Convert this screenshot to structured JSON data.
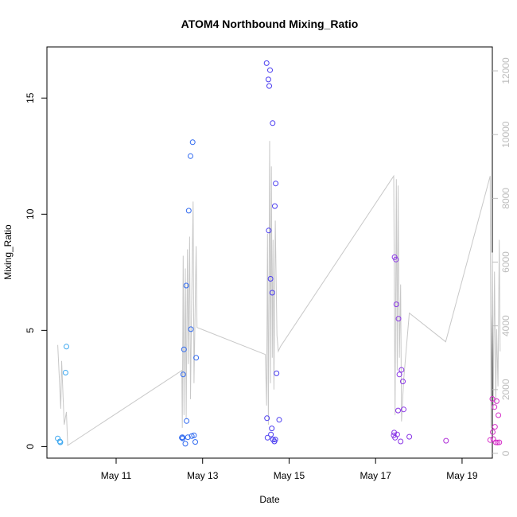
{
  "chart_data": {
    "type": "scatter",
    "title": "ATOM4 Northbound Mixing_Ratio",
    "xlabel": "Date",
    "ylabel": "Mixing_Ratio",
    "x_unit": "days since May 10 00:00",
    "xlim": [
      -0.6,
      9.7
    ],
    "ylim": [
      -0.5,
      17.2
    ],
    "x_ticks": [
      {
        "value": 1,
        "label": "May 11"
      },
      {
        "value": 3,
        "label": "May 13"
      },
      {
        "value": 5,
        "label": "May 15"
      },
      {
        "value": 7,
        "label": "May 17"
      },
      {
        "value": 9,
        "label": "May 19"
      }
    ],
    "y_ticks": [
      {
        "value": 0,
        "label": "0"
      },
      {
        "value": 5,
        "label": "5"
      },
      {
        "value": 10,
        "label": "10"
      },
      {
        "value": 15,
        "label": "15"
      }
    ],
    "y2_lim": [
      -150,
      12750
    ],
    "y2_ticks": [
      {
        "value": 0,
        "label": "0"
      },
      {
        "value": 2000,
        "label": "2000"
      },
      {
        "value": 4000,
        "label": "4000"
      },
      {
        "value": 6000,
        "label": "6000"
      },
      {
        "value": 8000,
        "label": "8000"
      },
      {
        "value": 10000,
        "label": "10000"
      },
      {
        "value": 12000,
        "label": "12000"
      }
    ],
    "series": [
      {
        "kind": "points",
        "values": [
          [
            -0.35,
            0.35,
            "#3ba7f0"
          ],
          [
            -0.3,
            0.22,
            "#3ba7f0"
          ],
          [
            -0.29,
            0.18,
            "#3ba7f0"
          ],
          [
            -0.17,
            3.18,
            "#3ba7f0"
          ],
          [
            -0.15,
            4.3,
            "#3ba7f0"
          ],
          [
            2.52,
            0.38,
            "#2f69f0"
          ],
          [
            2.53,
            0.4,
            "#2f69f0"
          ],
          [
            2.54,
            0.35,
            "#2f69f0"
          ],
          [
            2.55,
            3.1,
            "#2f69f0"
          ],
          [
            2.57,
            4.18,
            "#2f69f0"
          ],
          [
            2.6,
            0.12,
            "#2f69f0"
          ],
          [
            2.62,
            6.93,
            "#2f69f0"
          ],
          [
            2.63,
            1.1,
            "#2f69f0"
          ],
          [
            2.66,
            0.4,
            "#2f69f0"
          ],
          [
            2.68,
            10.15,
            "#2f69f0"
          ],
          [
            2.72,
            12.5,
            "#2f69f0"
          ],
          [
            2.73,
            5.05,
            "#2f69f0"
          ],
          [
            2.75,
            0.45,
            "#2f69f0"
          ],
          [
            2.77,
            13.1,
            "#2f69f0"
          ],
          [
            2.8,
            0.48,
            "#2f69f0"
          ],
          [
            2.83,
            0.2,
            "#2f69f0"
          ],
          [
            2.85,
            3.82,
            "#2f69f0"
          ],
          [
            4.48,
            16.5,
            "#4a3cf0"
          ],
          [
            4.49,
            1.22,
            "#4a3cf0"
          ],
          [
            4.5,
            0.38,
            "#4a3cf0"
          ],
          [
            4.52,
            15.8,
            "#4a3cf0"
          ],
          [
            4.53,
            9.3,
            "#4a3cf0"
          ],
          [
            4.54,
            15.52,
            "#4a3cf0"
          ],
          [
            4.56,
            16.2,
            "#4a3cf0"
          ],
          [
            4.57,
            7.22,
            "#4a3cf0"
          ],
          [
            4.58,
            0.52,
            "#4a3cf0"
          ],
          [
            4.6,
            0.78,
            "#4a3cf0"
          ],
          [
            4.61,
            6.62,
            "#4a3cf0"
          ],
          [
            4.62,
            13.92,
            "#4a3cf0"
          ],
          [
            4.63,
            0.3,
            "#4a3cf0"
          ],
          [
            4.66,
            0.22,
            "#4a3cf0"
          ],
          [
            4.67,
            10.35,
            "#4a3cf0"
          ],
          [
            4.68,
            0.3,
            "#4a3cf0"
          ],
          [
            4.69,
            11.32,
            "#4a3cf0"
          ],
          [
            4.71,
            3.15,
            "#4a3cf0"
          ],
          [
            4.77,
            1.15,
            "#4a3cf0"
          ],
          [
            7.42,
            0.48,
            "#8a36e6"
          ],
          [
            7.43,
            0.6,
            "#8a36e6"
          ],
          [
            7.44,
            8.15,
            "#8a36e6"
          ],
          [
            7.45,
            0.38,
            "#8a36e6"
          ],
          [
            7.47,
            8.05,
            "#8a36e6"
          ],
          [
            7.48,
            6.12,
            "#8a36e6"
          ],
          [
            7.5,
            0.52,
            "#8a36e6"
          ],
          [
            7.52,
            1.55,
            "#8a36e6"
          ],
          [
            7.53,
            5.5,
            "#8a36e6"
          ],
          [
            7.55,
            3.1,
            "#8a36e6"
          ],
          [
            7.58,
            0.22,
            "#8a36e6"
          ],
          [
            7.6,
            3.3,
            "#8a36e6"
          ],
          [
            7.63,
            2.8,
            "#8a36e6"
          ],
          [
            7.65,
            1.6,
            "#8a36e6"
          ],
          [
            7.78,
            0.42,
            "#8a36e6"
          ],
          [
            8.63,
            0.25,
            "#b031d8"
          ],
          [
            9.65,
            0.28,
            "#d62fc9"
          ],
          [
            9.7,
            2.05,
            "#d62fc9"
          ],
          [
            9.71,
            0.62,
            "#d62fc9"
          ],
          [
            9.72,
            0.32,
            "#d62fc9"
          ],
          [
            9.75,
            1.7,
            "#d62fc9"
          ],
          [
            9.76,
            0.85,
            "#d62fc9"
          ],
          [
            9.78,
            0.18,
            "#d62fc9"
          ],
          [
            9.8,
            1.95,
            "#d62fc9"
          ],
          [
            9.82,
            0.17,
            "#d62fc9"
          ],
          [
            9.84,
            1.35,
            "#d62fc9"
          ],
          [
            9.86,
            0.18,
            "#d62fc9"
          ]
        ]
      },
      {
        "kind": "line",
        "axis": "right",
        "color": "#c8c8c8",
        "values": [
          [
            -0.35,
            3400
          ],
          [
            -0.28,
            1400
          ],
          [
            -0.26,
            2900
          ],
          [
            -0.2,
            900
          ],
          [
            -0.15,
            1300
          ],
          [
            -0.12,
            250
          ],
          [
            2.52,
            2600
          ],
          [
            2.53,
            800
          ],
          [
            2.55,
            6200
          ],
          [
            2.57,
            1200
          ],
          [
            2.6,
            5800
          ],
          [
            2.62,
            1100
          ],
          [
            2.65,
            6400
          ],
          [
            2.67,
            2800
          ],
          [
            2.7,
            6800
          ],
          [
            2.72,
            1700
          ],
          [
            2.75,
            5000
          ],
          [
            2.78,
            7900
          ],
          [
            2.8,
            2200
          ],
          [
            2.85,
            6500
          ],
          [
            2.87,
            3950
          ],
          [
            4.45,
            3100
          ],
          [
            4.48,
            1500
          ],
          [
            4.5,
            6900
          ],
          [
            4.52,
            900
          ],
          [
            4.55,
            9800
          ],
          [
            4.57,
            2200
          ],
          [
            4.59,
            9000
          ],
          [
            4.61,
            3000
          ],
          [
            4.63,
            6700
          ],
          [
            4.65,
            2000
          ],
          [
            4.68,
            7300
          ],
          [
            4.72,
            3700
          ],
          [
            4.75,
            3200
          ],
          [
            4.8,
            3350
          ],
          [
            7.42,
            8700
          ],
          [
            7.45,
            1200
          ],
          [
            7.48,
            8600
          ],
          [
            7.5,
            2600
          ],
          [
            7.52,
            8400
          ],
          [
            7.55,
            3000
          ],
          [
            7.58,
            5300
          ],
          [
            7.6,
            1000
          ],
          [
            7.65,
            2300
          ],
          [
            7.78,
            4400
          ],
          [
            8.62,
            3500
          ],
          [
            9.65,
            8700
          ],
          [
            9.67,
            800
          ],
          [
            9.7,
            6300
          ],
          [
            9.72,
            1400
          ],
          [
            9.75,
            5700
          ],
          [
            9.78,
            1500
          ],
          [
            9.8,
            3900
          ],
          [
            9.83,
            2100
          ],
          [
            9.86,
            6700
          ],
          [
            9.88,
            3200
          ]
        ]
      }
    ]
  }
}
